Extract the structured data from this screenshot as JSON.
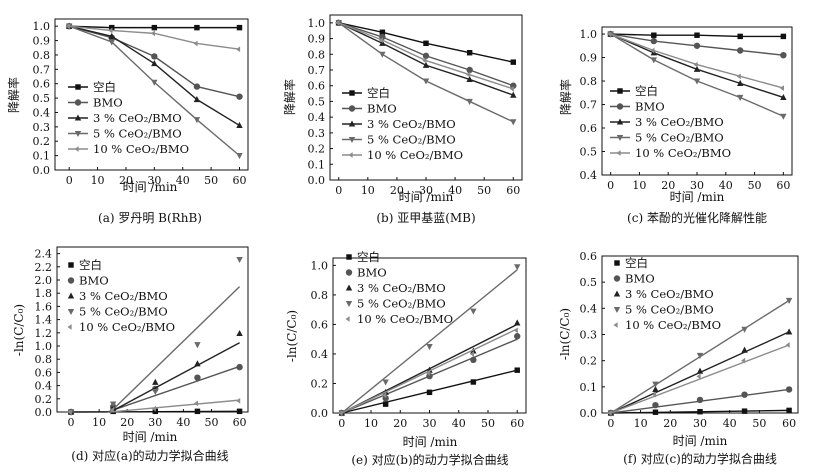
{
  "colors": {
    "blank": "#111111",
    "bmo": "#555555",
    "c3": "#222222",
    "c5": "#6a6a6a",
    "c10": "#8c8c8c"
  },
  "chart_data": [
    {
      "type": "line",
      "id": "a",
      "caption": "(a) 罗丹明 B(RhB)",
      "xlabel": "时间 /min",
      "ylabel": "降解率",
      "xlim": [
        -5,
        63
      ],
      "ylim": [
        0,
        1.05
      ],
      "xticks": [
        0,
        10,
        20,
        30,
        40,
        50,
        60
      ],
      "yticks": [
        0.0,
        0.1,
        0.2,
        0.3,
        0.4,
        0.5,
        0.6,
        0.7,
        0.8,
        0.9,
        1.0
      ],
      "ytick_decimals": 1,
      "legend": "left-lower",
      "series": [
        {
          "name": "空白",
          "marker": "square",
          "color_key": "blank",
          "x": [
            0,
            15,
            30,
            45,
            60
          ],
          "y": [
            1.0,
            0.99,
            0.99,
            0.99,
            0.99
          ]
        },
        {
          "name": "BMO",
          "marker": "circle",
          "color_key": "bmo",
          "x": [
            0,
            15,
            30,
            45,
            60
          ],
          "y": [
            1.0,
            0.92,
            0.79,
            0.58,
            0.51
          ]
        },
        {
          "name": "3 % CeO₂/BMO",
          "marker": "triangle-up",
          "color_key": "c3",
          "x": [
            0,
            15,
            30,
            45,
            60
          ],
          "y": [
            1.0,
            0.93,
            0.74,
            0.49,
            0.31
          ]
        },
        {
          "name": "5 % CeO₂/BMO",
          "marker": "triangle-down",
          "color_key": "c5",
          "x": [
            0,
            15,
            30,
            45,
            60
          ],
          "y": [
            1.0,
            0.89,
            0.61,
            0.35,
            0.1
          ]
        },
        {
          "name": "10 % CeO₂/BMO",
          "marker": "diamond",
          "color_key": "c10",
          "x": [
            0,
            15,
            30,
            45,
            60
          ],
          "y": [
            1.0,
            0.97,
            0.95,
            0.88,
            0.84
          ]
        }
      ]
    },
    {
      "type": "line",
      "id": "b",
      "caption": "(b) 亚甲基蓝(MB)",
      "xlabel": "时间 /min",
      "ylabel": "降解率",
      "xlim": [
        -3,
        63
      ],
      "ylim": [
        0,
        1.05
      ],
      "xticks": [
        0,
        10,
        20,
        30,
        40,
        50,
        60
      ],
      "yticks": [
        0.0,
        0.1,
        0.2,
        0.3,
        0.4,
        0.5,
        0.6,
        0.7,
        0.8,
        0.9,
        1.0
      ],
      "ytick_decimals": 1,
      "legend": "left-lower",
      "series": [
        {
          "name": "空白",
          "marker": "square",
          "color_key": "blank",
          "x": [
            0,
            15,
            30,
            45,
            60
          ],
          "y": [
            1.0,
            0.94,
            0.87,
            0.81,
            0.75
          ]
        },
        {
          "name": "BMO",
          "marker": "circle",
          "color_key": "bmo",
          "x": [
            0,
            15,
            30,
            45,
            60
          ],
          "y": [
            1.0,
            0.91,
            0.79,
            0.7,
            0.6
          ]
        },
        {
          "name": "3 % CeO₂/BMO",
          "marker": "triangle-up",
          "color_key": "c3",
          "x": [
            0,
            15,
            30,
            45,
            60
          ],
          "y": [
            1.0,
            0.87,
            0.73,
            0.64,
            0.54
          ]
        },
        {
          "name": "5 % CeO₂/BMO",
          "marker": "triangle-down",
          "color_key": "c5",
          "x": [
            0,
            15,
            30,
            45,
            60
          ],
          "y": [
            1.0,
            0.8,
            0.63,
            0.5,
            0.37
          ]
        },
        {
          "name": "10 % CeO₂/BMO",
          "marker": "diamond",
          "color_key": "c10",
          "x": [
            0,
            15,
            30,
            45,
            60
          ],
          "y": [
            1.0,
            0.89,
            0.76,
            0.67,
            0.58
          ]
        }
      ]
    },
    {
      "type": "line",
      "id": "c",
      "caption": "(c) 苯酚的光催化降解性能",
      "xlabel": "时间 /min",
      "ylabel": "降解率",
      "xlim": [
        -3,
        63
      ],
      "ylim": [
        0.4,
        1.03
      ],
      "xticks": [
        0,
        10,
        20,
        30,
        40,
        50,
        60
      ],
      "yticks": [
        0.4,
        0.5,
        0.6,
        0.7,
        0.8,
        0.9,
        1.0
      ],
      "ytick_decimals": 1,
      "legend": "left-lower",
      "series": [
        {
          "name": "空白",
          "marker": "square",
          "color_key": "blank",
          "x": [
            0,
            15,
            30,
            45,
            60
          ],
          "y": [
            1.0,
            0.995,
            0.995,
            0.99,
            0.99
          ]
        },
        {
          "name": "BMO",
          "marker": "circle",
          "color_key": "bmo",
          "x": [
            0,
            15,
            30,
            45,
            60
          ],
          "y": [
            1.0,
            0.97,
            0.95,
            0.93,
            0.91
          ]
        },
        {
          "name": "3 % CeO₂/BMO",
          "marker": "triangle-up",
          "color_key": "c3",
          "x": [
            0,
            15,
            30,
            45,
            60
          ],
          "y": [
            1.0,
            0.92,
            0.85,
            0.79,
            0.73
          ]
        },
        {
          "name": "5 % CeO₂/BMO",
          "marker": "triangle-down",
          "color_key": "c5",
          "x": [
            0,
            15,
            30,
            45,
            60
          ],
          "y": [
            1.0,
            0.89,
            0.8,
            0.73,
            0.65
          ]
        },
        {
          "name": "10 % CeO₂/BMO",
          "marker": "diamond",
          "color_key": "c10",
          "x": [
            0,
            15,
            30,
            45,
            60
          ],
          "y": [
            1.0,
            0.93,
            0.87,
            0.82,
            0.77
          ]
        }
      ]
    },
    {
      "type": "scatter",
      "id": "d",
      "caption": "(d) 对应(a)的动力学拟合曲线",
      "xlabel": "时间 /min",
      "ylabel": "-ln(C/C₀)",
      "xlim": [
        -5,
        63
      ],
      "ylim": [
        0,
        2.5
      ],
      "xticks": [
        0,
        10,
        20,
        30,
        40,
        50,
        60
      ],
      "yticks": [
        0.0,
        0.2,
        0.4,
        0.6,
        0.8,
        1.0,
        1.2,
        1.4,
        1.6,
        1.8,
        2.0,
        2.2,
        2.4
      ],
      "ytick_decimals": 1,
      "legend": "top-left",
      "series": [
        {
          "name": "空白",
          "marker": "square",
          "color_key": "blank",
          "x": [
            0,
            15,
            30,
            45,
            60
          ],
          "y": [
            0.0,
            0.01,
            0.01,
            0.01,
            0.01
          ],
          "fit": [
            [
              0,
              0.0
            ],
            [
              60,
              0.01
            ]
          ]
        },
        {
          "name": "BMO",
          "marker": "circle",
          "color_key": "bmo",
          "x": [
            0,
            15,
            30,
            45,
            60
          ],
          "y": [
            0.0,
            0.08,
            0.35,
            0.52,
            0.68
          ],
          "fit": [
            [
              13,
              0.0
            ],
            [
              60,
              0.69
            ]
          ]
        },
        {
          "name": "3 % CeO₂/BMO",
          "marker": "triangle-up",
          "color_key": "c3",
          "x": [
            0,
            15,
            30,
            45,
            60
          ],
          "y": [
            0.0,
            0.07,
            0.45,
            0.73,
            1.19
          ],
          "fit": [
            [
              14,
              0.0
            ],
            [
              60,
              1.05
            ]
          ]
        },
        {
          "name": "5 % CeO₂/BMO",
          "marker": "triangle-down",
          "color_key": "c5",
          "x": [
            0,
            15,
            30,
            45,
            60
          ],
          "y": [
            0.0,
            0.12,
            0.31,
            1.02,
            2.31
          ],
          "fit": [
            [
              14,
              0.0
            ],
            [
              60,
              1.9
            ]
          ]
        },
        {
          "name": "10 % CeO₂/BMO",
          "marker": "diamond",
          "color_key": "c10",
          "x": [
            0,
            15,
            30,
            45,
            60
          ],
          "y": [
            0.0,
            0.03,
            0.05,
            0.13,
            0.17
          ],
          "fit": [
            [
              14,
              0.0
            ],
            [
              60,
              0.18
            ]
          ]
        }
      ]
    },
    {
      "type": "scatter",
      "id": "e",
      "caption": "(e) 对应(b)的动力学拟合曲线",
      "xlabel": "时间 /min",
      "ylabel": "-ln(C/C₀)",
      "xlim": [
        -3,
        63
      ],
      "ylim": [
        0,
        1.05
      ],
      "xticks": [
        0,
        10,
        20,
        30,
        40,
        50,
        60
      ],
      "yticks": [
        0.0,
        0.2,
        0.4,
        0.6,
        0.8,
        1.0
      ],
      "ytick_decimals": 1,
      "legend": "top-left",
      "series": [
        {
          "name": "空白",
          "marker": "square",
          "color_key": "blank",
          "x": [
            0,
            15,
            30,
            45,
            60
          ],
          "y": [
            0.0,
            0.06,
            0.14,
            0.21,
            0.29
          ],
          "fit": [
            [
              0,
              0.0
            ],
            [
              60,
              0.29
            ]
          ]
        },
        {
          "name": "BMO",
          "marker": "circle",
          "color_key": "bmo",
          "x": [
            0,
            15,
            30,
            45,
            60
          ],
          "y": [
            0.0,
            0.1,
            0.25,
            0.36,
            0.52
          ],
          "fit": [
            [
              0,
              0.0
            ],
            [
              60,
              0.5
            ]
          ]
        },
        {
          "name": "3 % CeO₂/BMO",
          "marker": "triangle-up",
          "color_key": "c3",
          "x": [
            0,
            15,
            30,
            45,
            60
          ],
          "y": [
            0.0,
            0.14,
            0.29,
            0.42,
            0.61
          ],
          "fit": [
            [
              0,
              0.0
            ],
            [
              60,
              0.6
            ]
          ]
        },
        {
          "name": "5 % CeO₂/BMO",
          "marker": "triangle-down",
          "color_key": "c5",
          "x": [
            0,
            15,
            30,
            45,
            60
          ],
          "y": [
            0.0,
            0.21,
            0.45,
            0.69,
            0.99
          ],
          "fit": [
            [
              0,
              0.0
            ],
            [
              60,
              0.97
            ]
          ]
        },
        {
          "name": "10 % CeO₂/BMO",
          "marker": "diamond",
          "color_key": "c10",
          "x": [
            0,
            15,
            30,
            45,
            60
          ],
          "y": [
            0.0,
            0.12,
            0.27,
            0.4,
            0.56
          ],
          "fit": [
            [
              0,
              0.0
            ],
            [
              60,
              0.57
            ]
          ]
        }
      ]
    },
    {
      "type": "scatter",
      "id": "f",
      "caption": "(f) 对应(c)的动力学拟合曲线",
      "xlabel": "时间 /min",
      "ylabel": "-ln(C/C₀)",
      "xlim": [
        -3,
        63
      ],
      "ylim": [
        0,
        0.6
      ],
      "xticks": [
        0,
        10,
        20,
        30,
        40,
        50,
        60
      ],
      "yticks": [
        0.0,
        0.1,
        0.2,
        0.3,
        0.4,
        0.5,
        0.6
      ],
      "ytick_decimals": 1,
      "legend": "top-left",
      "series": [
        {
          "name": "空白",
          "marker": "square",
          "color_key": "blank",
          "x": [
            0,
            15,
            30,
            45,
            60
          ],
          "y": [
            0.0,
            0.003,
            0.005,
            0.007,
            0.01
          ],
          "fit": [
            [
              0,
              0.0
            ],
            [
              60,
              0.01
            ]
          ]
        },
        {
          "name": "BMO",
          "marker": "circle",
          "color_key": "bmo",
          "x": [
            0,
            15,
            30,
            45,
            60
          ],
          "y": [
            0.0,
            0.03,
            0.05,
            0.07,
            0.09
          ],
          "fit": [
            [
              0,
              0.0
            ],
            [
              60,
              0.09
            ]
          ]
        },
        {
          "name": "3 % CeO₂/BMO",
          "marker": "triangle-up",
          "color_key": "c3",
          "x": [
            0,
            15,
            30,
            45,
            60
          ],
          "y": [
            0.0,
            0.09,
            0.16,
            0.24,
            0.31
          ],
          "fit": [
            [
              0,
              0.0
            ],
            [
              60,
              0.31
            ]
          ]
        },
        {
          "name": "5 % CeO₂/BMO",
          "marker": "triangle-down",
          "color_key": "c5",
          "x": [
            0,
            15,
            30,
            45,
            60
          ],
          "y": [
            0.0,
            0.11,
            0.22,
            0.32,
            0.43
          ],
          "fit": [
            [
              0,
              0.0
            ],
            [
              60,
              0.43
            ]
          ]
        },
        {
          "name": "10 % CeO₂/BMO",
          "marker": "diamond",
          "color_key": "c10",
          "x": [
            0,
            15,
            30,
            45,
            60
          ],
          "y": [
            0.0,
            0.07,
            0.14,
            0.2,
            0.26
          ],
          "fit": [
            [
              0,
              0.0
            ],
            [
              60,
              0.26
            ]
          ]
        }
      ]
    }
  ]
}
